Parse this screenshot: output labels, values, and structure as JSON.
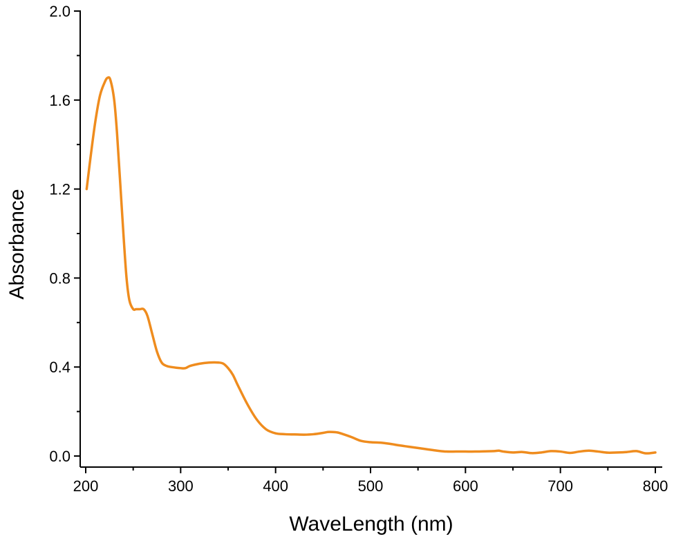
{
  "chart_data": {
    "type": "line",
    "title": "",
    "xlabel": "WaveLength (nm)",
    "ylabel": "Absorbance",
    "xlim": [
      200,
      800
    ],
    "ylim": [
      0.0,
      2.0
    ],
    "x_ticks": [
      200,
      300,
      400,
      500,
      600,
      700,
      800
    ],
    "y_ticks": [
      0.0,
      0.4,
      0.8,
      1.2,
      1.6,
      2.0
    ],
    "x_tick_labels": [
      "200",
      "300",
      "400",
      "500",
      "600",
      "700",
      "800"
    ],
    "y_tick_labels": [
      "0.0",
      "0.4",
      "0.8",
      "1.2",
      "1.6",
      "2.0"
    ],
    "grid": false,
    "series_color": "#ef8c1e",
    "series": [
      {
        "x": [
          201,
          205,
          210,
          215,
          220,
          223,
          226,
          230,
          233,
          236,
          240,
          243,
          246,
          250,
          253,
          257,
          261,
          265,
          270,
          275,
          280,
          285,
          290,
          300,
          305,
          310,
          320,
          330,
          340,
          345,
          350,
          355,
          360,
          370,
          380,
          390,
          400,
          410,
          420,
          430,
          440,
          450,
          455,
          460,
          465,
          470,
          480,
          490,
          500,
          510,
          520,
          530,
          540,
          550,
          560,
          570,
          580,
          590,
          600,
          610,
          620,
          630,
          635,
          640,
          650,
          660,
          670,
          680,
          690,
          700,
          710,
          720,
          730,
          740,
          750,
          760,
          770,
          780,
          790,
          800
        ],
        "y": [
          1.2,
          1.34,
          1.5,
          1.62,
          1.68,
          1.7,
          1.69,
          1.6,
          1.45,
          1.25,
          0.98,
          0.8,
          0.7,
          0.66,
          0.66,
          0.66,
          0.66,
          0.63,
          0.55,
          0.47,
          0.42,
          0.405,
          0.4,
          0.395,
          0.395,
          0.405,
          0.415,
          0.42,
          0.42,
          0.415,
          0.395,
          0.365,
          0.32,
          0.235,
          0.165,
          0.12,
          0.102,
          0.098,
          0.097,
          0.096,
          0.098,
          0.104,
          0.108,
          0.108,
          0.106,
          0.1,
          0.085,
          0.068,
          0.062,
          0.06,
          0.055,
          0.048,
          0.042,
          0.036,
          0.03,
          0.024,
          0.02,
          0.02,
          0.02,
          0.02,
          0.021,
          0.022,
          0.024,
          0.02,
          0.016,
          0.018,
          0.013,
          0.016,
          0.022,
          0.02,
          0.014,
          0.02,
          0.024,
          0.02,
          0.015,
          0.016,
          0.018,
          0.022,
          0.012,
          0.016
        ]
      }
    ]
  }
}
